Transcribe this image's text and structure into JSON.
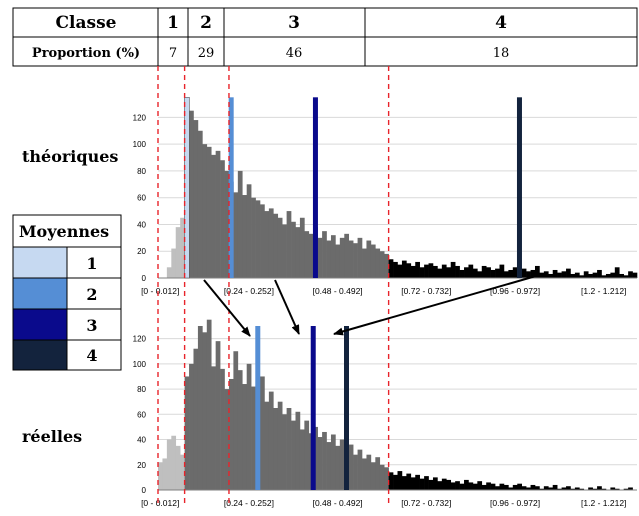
{
  "header_table": {
    "row1_label": "Classe",
    "row2_label": "Proportion (%)",
    "classes": [
      {
        "label": "1",
        "proportion": "7"
      },
      {
        "label": "2",
        "proportion": "29"
      },
      {
        "label": "3",
        "proportion": "46"
      },
      {
        "label": "4",
        "proportion": "18"
      }
    ]
  },
  "legend": {
    "title": "Moyennes",
    "items": [
      {
        "label": "1",
        "color": "#c6d9f1"
      },
      {
        "label": "2",
        "color": "#558ed5"
      },
      {
        "label": "3",
        "color": "#0a0a8c"
      },
      {
        "label": "4",
        "color": "#13233d"
      }
    ]
  },
  "side_labels": {
    "top": "théoriques",
    "bottom": "réelles"
  },
  "colors": {
    "class_boundary": "#e8242b",
    "class1_hist": "#bfbfbf",
    "class2_3_hist": "#6b6b6b",
    "class4_hist": "#000000",
    "arrow": "#000000"
  },
  "chart_data": [
    {
      "type": "bar",
      "panel": "théoriques",
      "title": "",
      "xlabel": "",
      "ylabel": "",
      "ylim": [
        0,
        130
      ],
      "yticks": [
        0,
        20,
        40,
        60,
        80,
        100,
        120
      ],
      "grid": true,
      "bin_width": 0.012,
      "bin_count": 108,
      "tick_labels": [
        "[0 - 0.012]",
        "[0.24 - 0.252]",
        "[0.48 - 0.492]",
        "[0.72 - 0.732]",
        "[0.96 - 0.972]",
        "[1.2 - 1.212]"
      ],
      "class_bounds_bins": [
        6,
        16,
        52
      ],
      "series": [
        {
          "values": [
            0,
            0,
            8,
            22,
            38,
            45,
            120,
            125,
            118,
            110,
            100,
            98,
            92,
            95,
            88,
            80,
            72,
            64,
            80,
            62,
            70,
            60,
            58,
            55,
            50,
            52,
            48,
            45,
            40,
            50,
            42,
            38,
            45,
            35,
            33,
            38,
            30,
            35,
            28,
            32,
            25,
            30,
            33,
            28,
            26,
            30,
            22,
            28,
            25,
            22,
            20,
            18,
            14,
            12,
            10,
            13,
            11,
            9,
            12,
            8,
            10,
            11,
            9,
            7,
            10,
            8,
            12,
            9,
            6,
            8,
            10,
            7,
            5,
            9,
            8,
            6,
            7,
            10,
            5,
            6,
            8,
            4,
            7,
            5,
            6,
            9,
            4,
            5,
            3,
            6,
            4,
            5,
            7,
            3,
            4,
            2,
            5,
            3,
            4,
            6,
            2,
            3,
            4,
            8,
            3,
            2,
            5,
            4
          ]
        }
      ],
      "means": [
        {
          "label": "1",
          "value": 0.078,
          "height": 135
        },
        {
          "label": "2",
          "value": 0.198,
          "height": 135
        },
        {
          "label": "3",
          "value": 0.426,
          "height": 135
        },
        {
          "label": "4",
          "value": 0.978,
          "height": 135
        }
      ]
    },
    {
      "type": "bar",
      "panel": "réelles",
      "title": "",
      "xlabel": "",
      "ylabel": "",
      "ylim": [
        0,
        130
      ],
      "yticks": [
        0,
        20,
        40,
        60,
        80,
        100,
        120
      ],
      "grid": true,
      "bin_width": 0.012,
      "bin_count": 108,
      "tick_labels": [
        "[0 - 0.012]",
        "[0.24 - 0.252]",
        "[0.48 - 0.492]",
        "[0.72 - 0.732]",
        "[0.96 - 0.972]",
        "[1.2 - 1.212]"
      ],
      "class_bounds_bins": [
        6,
        16,
        52
      ],
      "series": [
        {
          "values": [
            22,
            25,
            40,
            43,
            35,
            28,
            90,
            100,
            112,
            130,
            125,
            135,
            98,
            118,
            96,
            80,
            88,
            110,
            95,
            84,
            100,
            82,
            76,
            90,
            70,
            78,
            65,
            70,
            60,
            65,
            55,
            62,
            48,
            55,
            45,
            50,
            42,
            46,
            38,
            44,
            35,
            40,
            30,
            36,
            28,
            32,
            25,
            28,
            22,
            26,
            20,
            18,
            14,
            12,
            15,
            11,
            13,
            10,
            12,
            9,
            11,
            8,
            10,
            7,
            9,
            8,
            6,
            7,
            5,
            8,
            6,
            5,
            7,
            4,
            6,
            5,
            3,
            5,
            4,
            2,
            4,
            5,
            3,
            2,
            4,
            3,
            1,
            3,
            2,
            4,
            1,
            2,
            3,
            1,
            2,
            1,
            0,
            2,
            1,
            3,
            1,
            0,
            2,
            1,
            0,
            1,
            2,
            0
          ]
        }
      ],
      "means": [
        {
          "label": "2",
          "value": 0.27,
          "height": 130
        },
        {
          "label": "3",
          "value": 0.42,
          "height": 130
        },
        {
          "label": "4",
          "value": 0.51,
          "height": 130
        }
      ]
    }
  ]
}
